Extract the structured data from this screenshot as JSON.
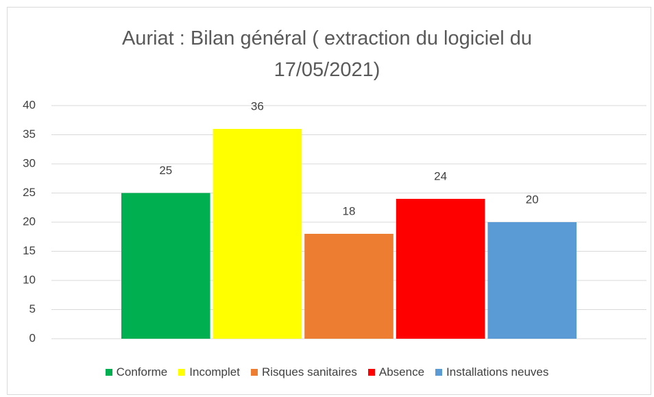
{
  "chart_data": {
    "type": "bar",
    "title": "Auriat : Bilan général ( extraction du logiciel du 17/05/2021)",
    "categories": [
      null
    ],
    "series": [
      {
        "name": "Conforme",
        "color": "#00b050",
        "values": [
          25
        ]
      },
      {
        "name": "Incomplet",
        "color": "#ffff00",
        "values": [
          36
        ]
      },
      {
        "name": "Risques sanitaires",
        "color": "#ed7d31",
        "values": [
          18
        ]
      },
      {
        "name": "Absence",
        "color": "#ff0000",
        "values": [
          24
        ]
      },
      {
        "name": "Installations neuves",
        "color": "#5b9bd5",
        "values": [
          20
        ]
      }
    ],
    "ylim": [
      0,
      40
    ],
    "yticks": [
      0,
      5,
      10,
      15,
      20,
      25,
      30,
      35,
      40
    ],
    "grid": true,
    "legend": "bottom"
  }
}
